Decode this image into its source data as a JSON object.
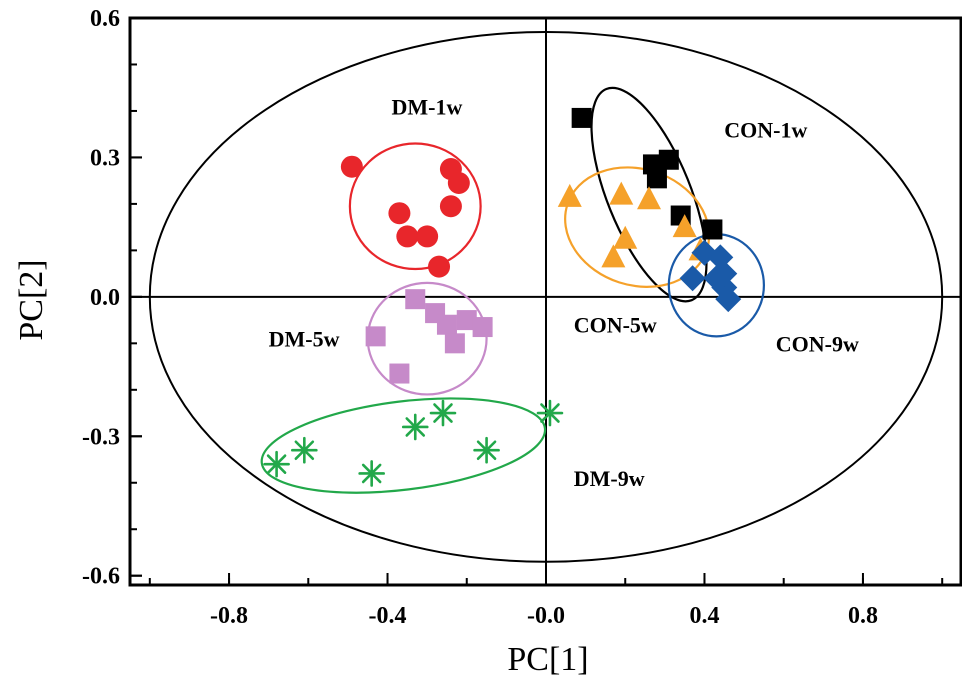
{
  "chart_data": {
    "type": "scatter",
    "title": "",
    "xlabel": "PC[1]",
    "ylabel": "PC[2]",
    "xlim": [
      -1.05,
      1.05
    ],
    "ylim": [
      -0.62,
      0.6
    ],
    "xticks": [
      -0.8,
      -0.4,
      0.0,
      0.4,
      0.8
    ],
    "xtick_labels": [
      "-0.8",
      "-0.4",
      "-0.0",
      "0.4",
      "0.8"
    ],
    "yticks": [
      -0.6,
      -0.3,
      0.0,
      0.3,
      0.6
    ],
    "ytick_labels": [
      "-0.6",
      "-0.3",
      "0.0",
      "0.3",
      "0.6"
    ],
    "grid": false,
    "zero_lines": true,
    "confidence_ellipse": {
      "cx": 0.0,
      "cy": 0.0,
      "rx": 1.0,
      "ry": 0.57,
      "color": "#000000"
    },
    "series": [
      {
        "name": "DM-1w",
        "marker": "circle",
        "color": "#e8262b",
        "points": [
          [
            -0.49,
            0.28
          ],
          [
            -0.37,
            0.18
          ],
          [
            -0.35,
            0.13
          ],
          [
            -0.3,
            0.13
          ],
          [
            -0.27,
            0.065
          ],
          [
            -0.24,
            0.275
          ],
          [
            -0.22,
            0.245
          ],
          [
            -0.24,
            0.195
          ]
        ],
        "ellipse": {
          "cx": -0.33,
          "cy": 0.195,
          "rx": 0.165,
          "ry": 0.135
        },
        "label_pos": [
          -0.39,
          0.41
        ]
      },
      {
        "name": "DM-5w",
        "marker": "square",
        "color": "#c68ac9",
        "points": [
          [
            -0.33,
            -0.005
          ],
          [
            -0.28,
            -0.035
          ],
          [
            -0.25,
            -0.06
          ],
          [
            -0.2,
            -0.05
          ],
          [
            -0.16,
            -0.065
          ],
          [
            -0.23,
            -0.1
          ],
          [
            -0.43,
            -0.085
          ],
          [
            -0.37,
            -0.165
          ]
        ],
        "ellipse": {
          "cx": -0.3,
          "cy": -0.09,
          "rx": 0.15,
          "ry": 0.12
        },
        "label_pos": [
          -0.7,
          -0.09
        ]
      },
      {
        "name": "DM-9w",
        "marker": "asterisk",
        "color": "#22a84a",
        "points": [
          [
            -0.68,
            -0.36
          ],
          [
            -0.61,
            -0.33
          ],
          [
            -0.44,
            -0.38
          ],
          [
            -0.33,
            -0.28
          ],
          [
            -0.26,
            -0.25
          ],
          [
            -0.15,
            -0.33
          ],
          [
            0.01,
            -0.25
          ]
        ],
        "ellipse": {
          "cx": -0.36,
          "cy": -0.32,
          "rx": 0.36,
          "ry": 0.095,
          "angle": -7
        },
        "label_pos": [
          0.07,
          -0.39
        ]
      },
      {
        "name": "CON-1w",
        "marker": "square",
        "color": "#000000",
        "points": [
          [
            0.09,
            0.385
          ],
          [
            0.27,
            0.285
          ],
          [
            0.31,
            0.295
          ],
          [
            0.28,
            0.255
          ],
          [
            0.34,
            0.175
          ],
          [
            0.42,
            0.145
          ]
        ],
        "ellipse": {
          "cx": 0.26,
          "cy": 0.22,
          "rx": 0.105,
          "ry": 0.245,
          "angle": -22
        },
        "label_pos": [
          0.45,
          0.36
        ]
      },
      {
        "name": "CON-5w",
        "marker": "triangle",
        "color": "#f5a12a",
        "points": [
          [
            0.06,
            0.215
          ],
          [
            0.19,
            0.22
          ],
          [
            0.26,
            0.21
          ],
          [
            0.2,
            0.125
          ],
          [
            0.17,
            0.085
          ],
          [
            0.35,
            0.15
          ],
          [
            0.39,
            0.1
          ]
        ],
        "ellipse": {
          "cx": 0.23,
          "cy": 0.15,
          "rx": 0.185,
          "ry": 0.125,
          "angle": 18
        },
        "label_pos": [
          0.07,
          -0.06
        ]
      },
      {
        "name": "CON-9w",
        "marker": "diamond",
        "color": "#1a5aa8",
        "points": [
          [
            0.4,
            0.095
          ],
          [
            0.44,
            0.085
          ],
          [
            0.37,
            0.04
          ],
          [
            0.43,
            0.04
          ],
          [
            0.45,
            0.02
          ],
          [
            0.46,
            -0.005
          ],
          [
            0.45,
            0.05
          ]
        ],
        "ellipse": {
          "cx": 0.43,
          "cy": 0.025,
          "rx": 0.12,
          "ry": 0.11
        },
        "label_pos": [
          0.58,
          -0.1
        ]
      }
    ]
  }
}
